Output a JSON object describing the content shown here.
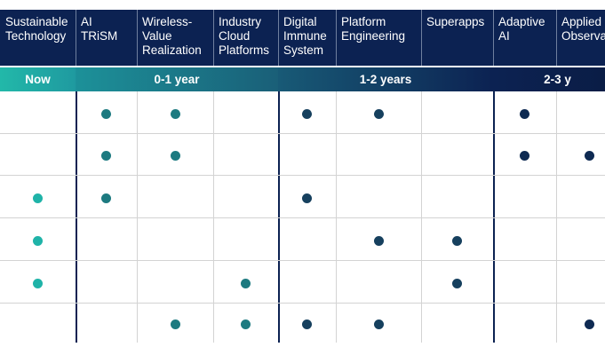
{
  "chart_data": {
    "type": "table",
    "columns": [
      {
        "label": "Sustainable\nTechnology",
        "horizon": "Now"
      },
      {
        "label": "AI\nTRiSM",
        "horizon": "0-1 year"
      },
      {
        "label": "Wireless-\nValue\nRealization",
        "horizon": "0-1 year"
      },
      {
        "label": "Industry\nCloud\nPlatforms",
        "horizon": "0-1 year"
      },
      {
        "label": "Digital\nImmune\nSystem",
        "horizon": "1-2 years"
      },
      {
        "label": "Platform\nEngineering",
        "horizon": "1-2 years"
      },
      {
        "label": "Superapps",
        "horizon": "1-2 years"
      },
      {
        "label": "Adaptive\nAI",
        "horizon": "2-3 y"
      },
      {
        "label": "Applied\nObservab",
        "horizon": "2-3 y"
      }
    ],
    "bands": [
      {
        "label": "Now",
        "from": 0,
        "to": 0
      },
      {
        "label": "0-1 year",
        "from": 1,
        "to": 3
      },
      {
        "label": "1-2 years",
        "from": 4,
        "to": 6
      },
      {
        "label": "2-3 y",
        "from": 7,
        "to": 8
      }
    ],
    "rows": [
      [
        0,
        1,
        1,
        0,
        1,
        1,
        0,
        1,
        0
      ],
      [
        0,
        1,
        1,
        0,
        0,
        0,
        0,
        1,
        1
      ],
      [
        1,
        1,
        0,
        0,
        1,
        0,
        0,
        0,
        0
      ],
      [
        1,
        0,
        0,
        0,
        0,
        1,
        1,
        0,
        0
      ],
      [
        1,
        0,
        0,
        1,
        0,
        0,
        1,
        0,
        0
      ],
      [
        0,
        0,
        1,
        1,
        1,
        1,
        0,
        0,
        1
      ]
    ],
    "colors": {
      "header": "#0c2252",
      "dot_teal": "#1fb3a8",
      "dot_mid": "#1d7a80",
      "dot_dark": "#16405e",
      "dot_navy": "#0e2a52",
      "grid": "#d3d3d3"
    }
  }
}
